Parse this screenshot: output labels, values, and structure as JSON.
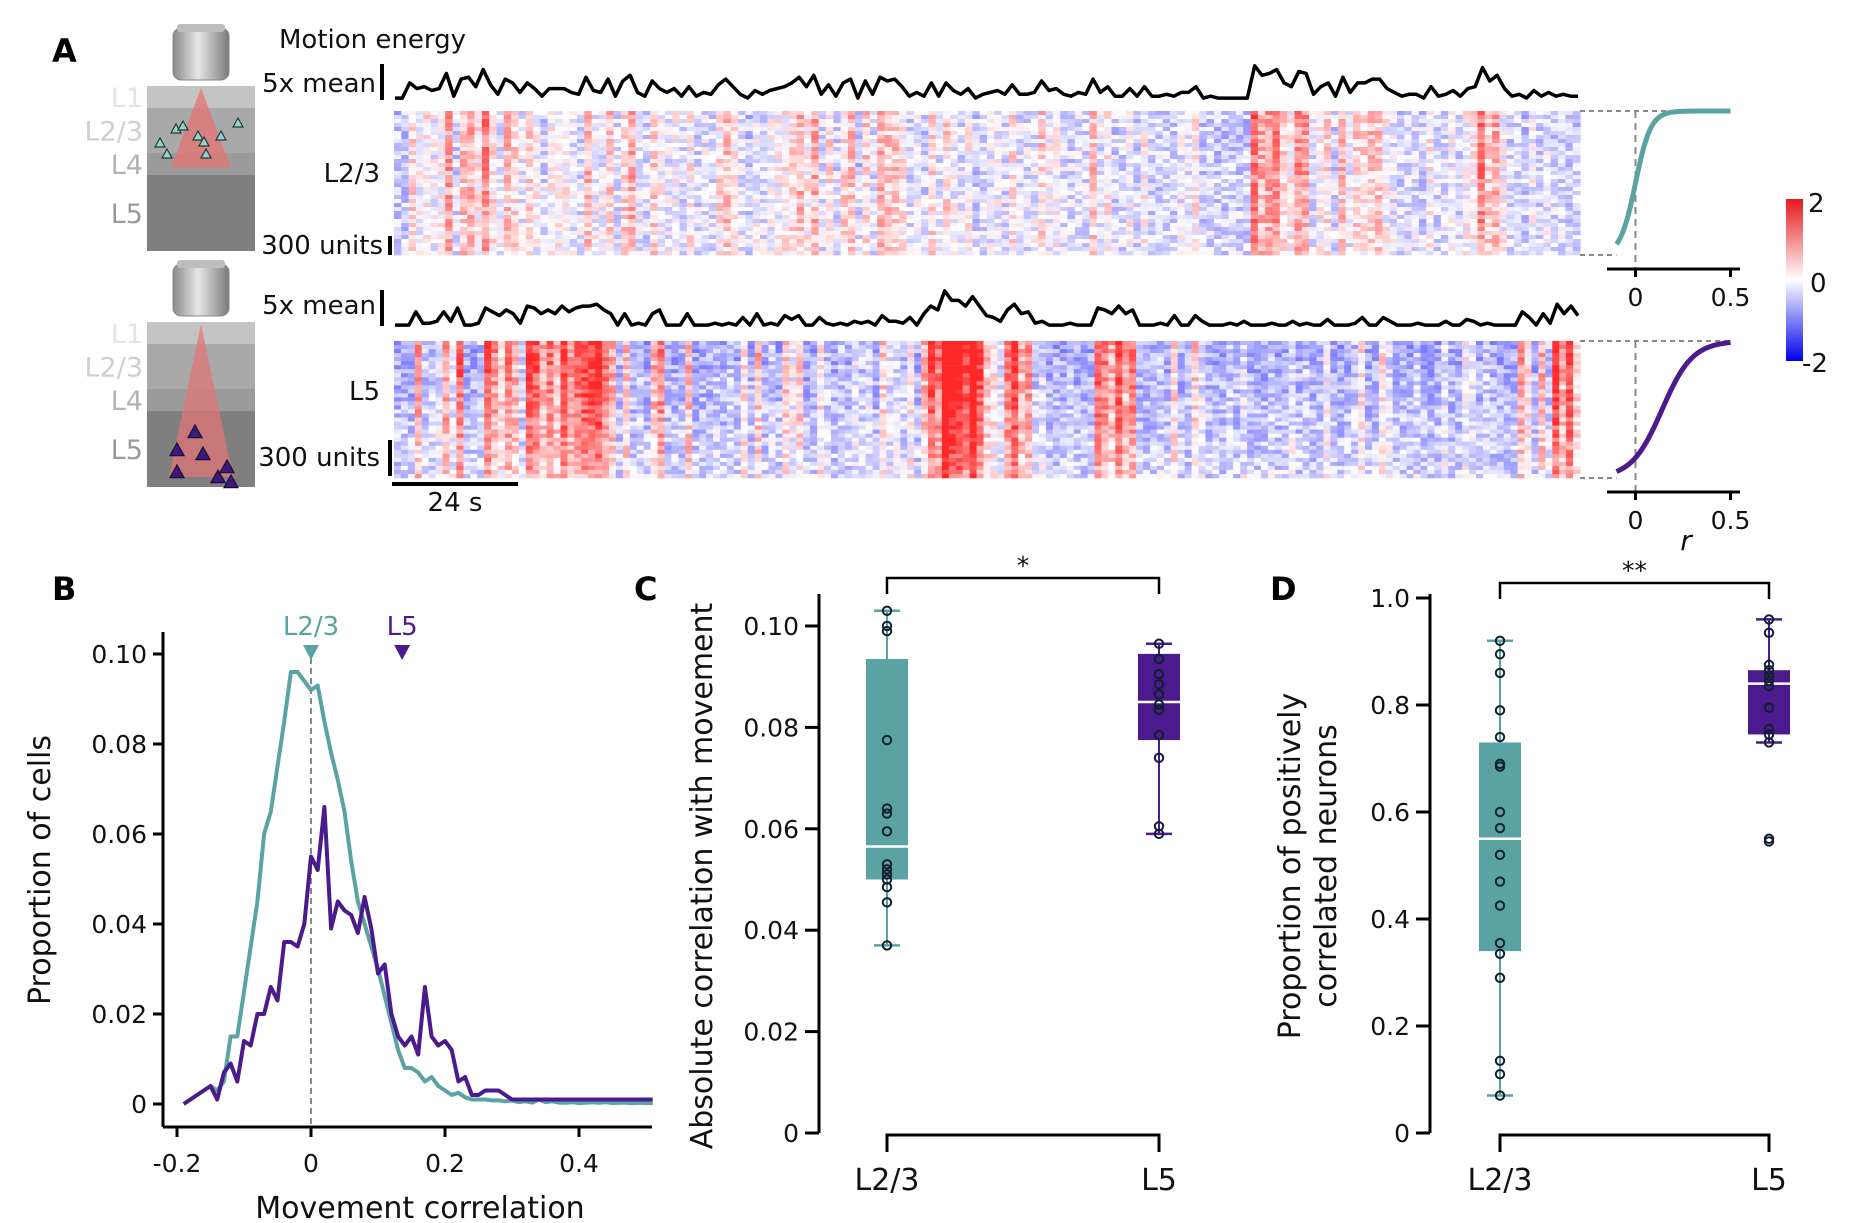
{
  "panels": {
    "A": {
      "label": "A",
      "motion_title": "Motion energy",
      "motion_scale_label": "5x mean",
      "units_scale_label": "300 units",
      "time_scale_label": "24 s",
      "top_row_label": "L2/3",
      "bottom_row_label": "L5",
      "schematic_layers": [
        "L1",
        "L2/3",
        "L4",
        "L5"
      ],
      "cdf_xlabel": "r",
      "cdf_ticks": [
        "0",
        "0.5"
      ],
      "colorbar_ticks": [
        "2",
        "0",
        "-2"
      ],
      "colors": {
        "l23": "#5ba3a3",
        "l5": "#4b1a8c",
        "heat_pos": "#e41a1c",
        "heat_neg": "#0000ee"
      }
    },
    "B": {
      "label": "B"
    },
    "C": {
      "label": "C",
      "significance": "*"
    },
    "D": {
      "label": "D",
      "significance": "**"
    }
  },
  "chart_data": [
    {
      "id": "A-top",
      "type": "heatmap",
      "title": "Motion energy",
      "row_label": "L2/3",
      "colorbar": {
        "min": -2,
        "max": 2,
        "ticks": [
          2,
          0,
          -2
        ]
      },
      "scale_bars": {
        "motion": "5x mean",
        "units": "300 units",
        "time": "24 s"
      },
      "motion_trace": [
        0.05,
        0.05,
        0.45,
        0.3,
        0.35,
        0.25,
        0.3,
        0.7,
        0.1,
        0.55,
        0.6,
        0.35,
        0.8,
        0.4,
        0.15,
        0.55,
        0.45,
        0.2,
        0.45,
        0.3,
        0.1,
        0.3,
        0.3,
        0.3,
        0.2,
        0.15,
        0.6,
        0.25,
        0.2,
        0.55,
        0.1,
        0.5,
        0.65,
        0.2,
        0.1,
        0.5,
        0.3,
        0.2,
        0.3,
        0.1,
        0.35,
        0.1,
        0.2,
        0.15,
        0.4,
        0.55,
        0.35,
        0.15,
        0.05,
        0.25,
        0.15,
        0.25,
        0.3,
        0.35,
        0.45,
        0.6,
        0.35,
        0.65,
        0.15,
        0.4,
        0.1,
        0.45,
        0.55,
        0.05,
        0.5,
        0.15,
        0.6,
        0.5,
        0.55,
        0.35,
        0.1,
        0.2,
        0.1,
        0.45,
        0.1,
        0.45,
        0.25,
        0.15,
        0.3,
        0.05,
        0.15,
        0.2,
        0.25,
        0.15,
        0.4,
        0.15,
        0.15,
        0.2,
        0.5,
        0.25,
        0.3,
        0.15,
        0.1,
        0.2,
        0.15,
        0.55,
        0.2,
        0.35,
        0.1,
        0.1,
        0.3,
        0.1,
        0.35,
        0.1,
        0.1,
        0.15,
        0.1,
        0.2,
        0.2,
        0.35,
        0.05,
        0.1,
        0.05,
        0.05,
        0.05,
        0.05,
        0.05,
        0.9,
        0.65,
        0.7,
        0.8,
        0.45,
        0.35,
        0.75,
        0.7,
        0.15,
        0.35,
        0.45,
        0.1,
        0.6,
        0.2,
        0.45,
        0.45,
        0.55,
        0.55,
        0.3,
        0.2,
        0.1,
        0.15,
        0.15,
        0.05,
        0.35,
        0.1,
        0.15,
        0.25,
        0.1,
        0.3,
        0.35,
        0.85,
        0.5,
        0.65,
        0.3,
        0.1,
        0.15,
        0.05,
        0.25,
        0.1,
        0.2,
        0.1,
        0.15,
        0.1,
        0.1
      ],
      "cdf": {
        "color": "#5ba3a3",
        "xlim": [
          -0.15,
          0.55
        ],
        "xticks": [
          0,
          0.5
        ],
        "median": 0.0,
        "spread": 0.04
      }
    },
    {
      "id": "A-bottom",
      "type": "heatmap",
      "row_label": "L5",
      "scale_bars": {
        "motion": "5x mean",
        "units": "300 units",
        "time": "24 s"
      },
      "motion_trace": [
        0.05,
        0.05,
        0.05,
        0.4,
        0.1,
        0.1,
        0.15,
        0.4,
        0.15,
        0.5,
        0.05,
        0.05,
        0.1,
        0.5,
        0.4,
        0.3,
        0.45,
        0.35,
        0.1,
        0.55,
        0.5,
        0.35,
        0.45,
        0.35,
        0.55,
        0.4,
        0.5,
        0.55,
        0.55,
        0.6,
        0.45,
        0.35,
        0.05,
        0.35,
        0.05,
        0.1,
        0.05,
        0.35,
        0.45,
        0.05,
        0.05,
        0.05,
        0.35,
        0.05,
        0.05,
        0.05,
        0.1,
        0.05,
        0.1,
        0.05,
        0.25,
        0.05,
        0.35,
        0.05,
        0.1,
        0.05,
        0.3,
        0.2,
        0.3,
        0.05,
        0.05,
        0.25,
        0.1,
        0.05,
        0.1,
        0.05,
        0.15,
        0.1,
        0.15,
        0.05,
        0.3,
        0.15,
        0.15,
        0.1,
        0.25,
        0.05,
        0.35,
        0.55,
        0.45,
        0.95,
        0.7,
        0.7,
        0.55,
        0.8,
        0.55,
        0.3,
        0.25,
        0.15,
        0.45,
        0.6,
        0.35,
        0.4,
        0.1,
        0.15,
        0.05,
        0.05,
        0.05,
        0.1,
        0.05,
        0.05,
        0.05,
        0.5,
        0.45,
        0.35,
        0.55,
        0.35,
        0.45,
        0.05,
        0.05,
        0.05,
        0.1,
        0.05,
        0.3,
        0.05,
        0.05,
        0.3,
        0.15,
        0.05,
        0.05,
        0.05,
        0.1,
        0.05,
        0.15,
        0.05,
        0.05,
        0.05,
        0.1,
        0.05,
        0.05,
        0.15,
        0.05,
        0.1,
        0.05,
        0.05,
        0.2,
        0.05,
        0.05,
        0.05,
        0.1,
        0.25,
        0.05,
        0.05,
        0.25,
        0.15,
        0.05,
        0.05,
        0.05,
        0.1,
        0.05,
        0.05,
        0.05,
        0.15,
        0.05,
        0.05,
        0.2,
        0.15,
        0.05,
        0.1,
        0.05,
        0.05,
        0.05,
        0.05,
        0.4,
        0.25,
        0.05,
        0.35,
        0.1,
        0.6,
        0.35,
        0.55,
        0.3
      ],
      "cdf": {
        "color": "#4b1a8c",
        "xlim": [
          -0.15,
          0.55
        ],
        "xticks": [
          0,
          0.5
        ],
        "xlabel": "r",
        "median": 0.14,
        "spread": 0.08
      }
    },
    {
      "id": "B",
      "type": "line",
      "xlabel": "Movement correlation",
      "ylabel": "Proportion of cells",
      "xlim": [
        -0.2,
        0.52
      ],
      "ylim": [
        0,
        0.105
      ],
      "xticks": [
        -0.2,
        0,
        0.2,
        0.4
      ],
      "xtick_labels": [
        "-0.2",
        "0",
        "0.2",
        "0.4"
      ],
      "yticks": [
        0,
        0.02,
        0.04,
        0.06,
        0.08,
        0.1
      ],
      "ytick_labels": [
        "0",
        "0.02",
        "0.04",
        "0.06",
        "0.08",
        "0.10"
      ],
      "reference_line_x": 0,
      "median_markers": [
        {
          "name": "L2/3",
          "x": 0.0,
          "color": "#5ba3a3"
        },
        {
          "name": "L5",
          "x": 0.136,
          "color": "#4b1a8c"
        }
      ],
      "x": [
        -0.19,
        -0.18,
        -0.17,
        -0.16,
        -0.15,
        -0.14,
        -0.13,
        -0.12,
        -0.11,
        -0.1,
        -0.09,
        -0.08,
        -0.07,
        -0.06,
        -0.05,
        -0.04,
        -0.03,
        -0.02,
        -0.01,
        0.0,
        0.01,
        0.02,
        0.03,
        0.04,
        0.05,
        0.06,
        0.07,
        0.08,
        0.09,
        0.1,
        0.11,
        0.12,
        0.13,
        0.14,
        0.15,
        0.16,
        0.17,
        0.18,
        0.19,
        0.2,
        0.21,
        0.22,
        0.23,
        0.24,
        0.25,
        0.26,
        0.27,
        0.28,
        0.29,
        0.3,
        0.31,
        0.32,
        0.33,
        0.34,
        0.35,
        0.36,
        0.37,
        0.38,
        0.39,
        0.4,
        0.41,
        0.42,
        0.43,
        0.44,
        0.45,
        0.46,
        0.47,
        0.48,
        0.49,
        0.5,
        0.51
      ],
      "series": [
        {
          "name": "L2/3",
          "color": "#5ba3a3",
          "values": [
            0.0,
            0.001,
            0.002,
            0.003,
            0.004,
            0.003,
            0.005,
            0.015,
            0.015,
            0.025,
            0.035,
            0.045,
            0.06,
            0.065,
            0.075,
            0.085,
            0.096,
            0.096,
            0.094,
            0.092,
            0.093,
            0.085,
            0.078,
            0.072,
            0.065,
            0.054,
            0.045,
            0.04,
            0.035,
            0.03,
            0.024,
            0.018,
            0.012,
            0.008,
            0.008,
            0.007,
            0.005,
            0.006,
            0.004,
            0.003,
            0.002,
            0.0025,
            0.0015,
            0.001,
            0.001,
            0.001,
            0.0008,
            0.0008,
            0.0006,
            0.0008,
            0.0004,
            0.0006,
            0.0003,
            0.001,
            0.0004,
            0.0006,
            0.0003,
            0.0003,
            0.0004,
            0.0002,
            0.0003,
            0.0004,
            0.0003,
            0.0004,
            0.0002,
            0.0003,
            0.0003,
            0.0002,
            0.0003,
            0.0002,
            0.0002
          ]
        },
        {
          "name": "L5",
          "color": "#4b1a8c",
          "values": [
            0.0,
            0.001,
            0.002,
            0.003,
            0.004,
            0.001,
            0.007,
            0.009,
            0.005,
            0.014,
            0.013,
            0.02,
            0.02,
            0.026,
            0.023,
            0.036,
            0.036,
            0.035,
            0.04,
            0.055,
            0.052,
            0.066,
            0.039,
            0.045,
            0.043,
            0.042,
            0.038,
            0.046,
            0.039,
            0.029,
            0.031,
            0.02,
            0.015,
            0.013,
            0.015,
            0.011,
            0.026,
            0.015,
            0.013,
            0.014,
            0.012,
            0.005,
            0.006,
            0.002,
            0.002,
            0.003,
            0.003,
            0.003,
            0.002,
            0.001,
            0.001,
            0.001,
            0.001,
            0.001,
            0.001,
            0.001,
            0.001,
            0.001,
            0.001,
            0.001,
            0.001,
            0.001,
            0.001,
            0.001,
            0.001,
            0.001,
            0.001,
            0.001,
            0.001,
            0.001,
            0.001
          ]
        }
      ]
    },
    {
      "id": "C",
      "type": "box",
      "ylabel": "Absolute correlation with movement",
      "categories": [
        "L2/3",
        "L5"
      ],
      "ylim": [
        0,
        0.107
      ],
      "yticks": [
        0,
        0.02,
        0.04,
        0.06,
        0.08,
        0.1
      ],
      "ytick_labels": [
        "0",
        "0.02",
        "0.04",
        "0.06",
        "0.08",
        "0.10"
      ],
      "significance": "*",
      "boxes": [
        {
          "name": "L2/3",
          "color": "#5ba3a3",
          "whisker_low": 0.037,
          "q1": 0.05,
          "median": 0.0565,
          "q3": 0.0935,
          "whisker_high": 0.103,
          "points": [
            0.103,
            0.1,
            0.099,
            0.0775,
            0.064,
            0.063,
            0.0595,
            0.053,
            0.052,
            0.051,
            0.05,
            0.0485,
            0.0455,
            0.037
          ]
        },
        {
          "name": "L5",
          "color": "#4b1a8c",
          "whisker_low": 0.059,
          "q1": 0.0775,
          "median": 0.085,
          "q3": 0.0945,
          "whisker_high": 0.0965,
          "points": [
            0.0965,
            0.0935,
            0.0905,
            0.0885,
            0.0865,
            0.0845,
            0.0835,
            0.0785,
            0.074,
            0.0605,
            0.059
          ]
        }
      ]
    },
    {
      "id": "D",
      "type": "box",
      "ylabel": "Proportion of positively correlated neurons",
      "ylabel_lines": [
        "Proportion of positively",
        "correlated neurons"
      ],
      "categories": [
        "L2/3",
        "L5"
      ],
      "ylim": [
        0,
        1.0
      ],
      "yticks": [
        0,
        0.2,
        0.4,
        0.6,
        0.8,
        1.0
      ],
      "ytick_labels": [
        "0",
        "0.2",
        "0.4",
        "0.6",
        "0.8",
        "1.0"
      ],
      "significance": "**",
      "boxes": [
        {
          "name": "L2/3",
          "color": "#5ba3a3",
          "whisker_low": 0.07,
          "q1": 0.34,
          "median": 0.55,
          "q3": 0.73,
          "whisker_high": 0.92,
          "points": [
            0.92,
            0.895,
            0.86,
            0.79,
            0.74,
            0.69,
            0.685,
            0.6,
            0.57,
            0.52,
            0.47,
            0.425,
            0.355,
            0.335,
            0.29,
            0.135,
            0.11,
            0.07
          ]
        },
        {
          "name": "L5",
          "color": "#4b1a8c",
          "whisker_low": 0.73,
          "q1": 0.745,
          "median": 0.84,
          "q3": 0.865,
          "whisker_high": 0.96,
          "points": [
            0.96,
            0.935,
            0.875,
            0.865,
            0.855,
            0.845,
            0.835,
            0.795,
            0.755,
            0.745,
            0.73,
            0.55,
            0.545
          ]
        }
      ]
    }
  ]
}
